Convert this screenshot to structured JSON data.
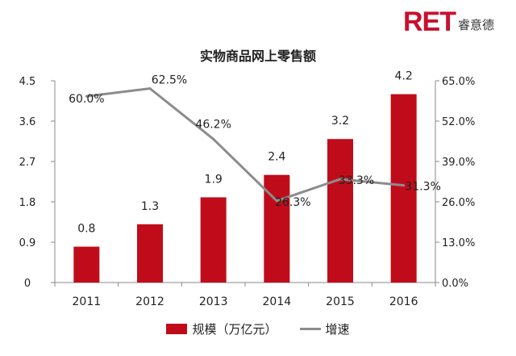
{
  "logo": {
    "brand": "RET",
    "cn": "睿意德",
    "color": "#c8102e"
  },
  "chart_data": {
    "type": "bar",
    "title": "实物商品网上零售额",
    "categories": [
      "2011",
      "2012",
      "2013",
      "2014",
      "2015",
      "2016"
    ],
    "series": [
      {
        "name": "规模（万亿元）",
        "type": "bar",
        "axis": "left",
        "values": [
          0.8,
          1.3,
          1.9,
          2.4,
          3.2,
          4.2
        ],
        "labels": [
          "0.8",
          "1.3",
          "1.9",
          "2.4",
          "3.2",
          "4.2"
        ],
        "color": "#c00c1a"
      },
      {
        "name": "增速",
        "type": "line",
        "axis": "right",
        "values": [
          60.0,
          62.5,
          46.2,
          26.3,
          33.3,
          31.3
        ],
        "labels": [
          "60.0%",
          "62.5%",
          "46.2%",
          "26.3%",
          "33.3%",
          "31.3%"
        ],
        "color": "#8c8c8c"
      }
    ],
    "y_left": {
      "ylim": [
        0,
        4.5
      ],
      "ticks": [
        "0",
        "0.9",
        "1.8",
        "2.7",
        "3.6",
        "4.5"
      ]
    },
    "y_right": {
      "ylim": [
        0,
        65
      ],
      "ticks": [
        "0.0%",
        "13.0%",
        "26.0%",
        "39.0%",
        "52.0%",
        "65.0%"
      ]
    },
    "grid": false,
    "legend": "bottom-center"
  }
}
